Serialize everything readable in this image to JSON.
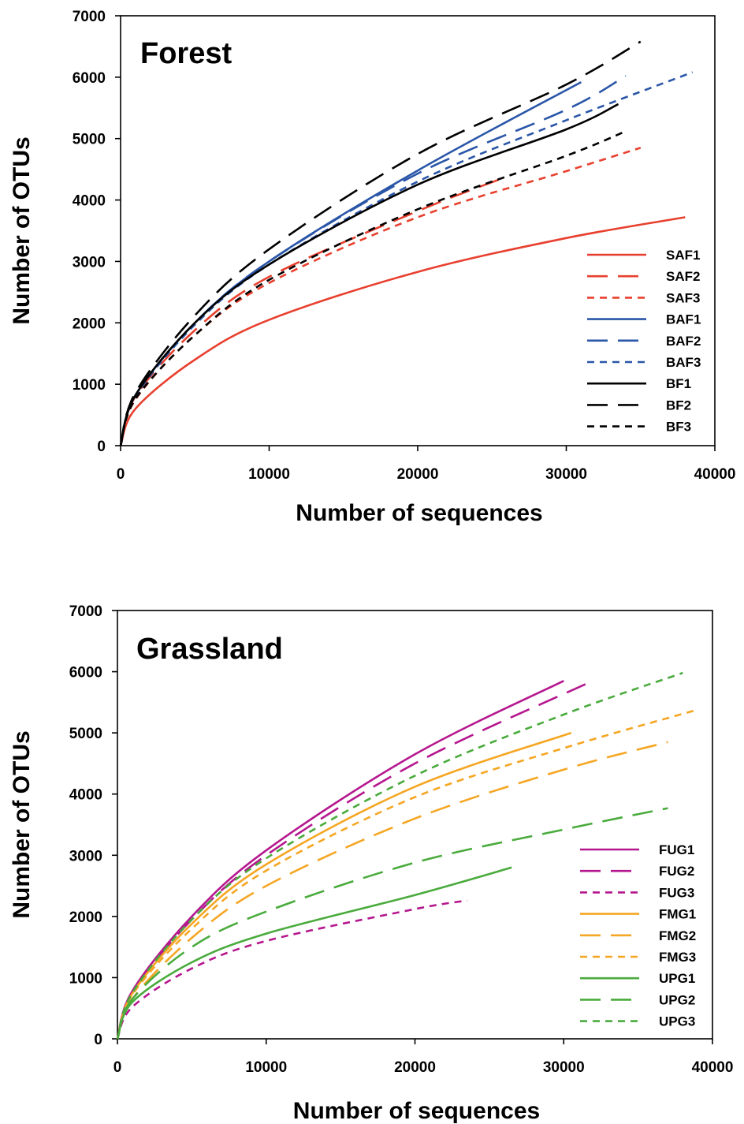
{
  "chart_data": [
    {
      "type": "line",
      "title": "Forest",
      "xlabel": "Number of sequences",
      "ylabel": "Number of OTUs",
      "xlim": [
        0,
        40000
      ],
      "ylim": [
        0,
        7000
      ],
      "xticks": [
        "0",
        "10000",
        "20000",
        "30000",
        "40000"
      ],
      "yticks": [
        "0",
        "1000",
        "2000",
        "3000",
        "4000",
        "5000",
        "6000",
        "7000"
      ],
      "grid": false,
      "legend_position": "bottom-right",
      "series": [
        {
          "name": "SAF1",
          "color": "#e8402f",
          "dash": "solid",
          "x": [
            0,
            1000,
            5000,
            10000,
            20000,
            30000,
            38000
          ],
          "y": [
            0,
            600,
            1400,
            2050,
            2830,
            3380,
            3720
          ]
        },
        {
          "name": "SAF2",
          "color": "#e8402f",
          "dash": "long-dash",
          "x": [
            0,
            1000,
            5000,
            10000,
            20000,
            26000
          ],
          "y": [
            0,
            800,
            1880,
            2750,
            3820,
            4380
          ]
        },
        {
          "name": "SAF3",
          "color": "#e8402f",
          "dash": "short-dash",
          "x": [
            0,
            1000,
            5000,
            10000,
            20000,
            30000,
            35000
          ],
          "y": [
            0,
            750,
            1800,
            2650,
            3720,
            4470,
            4850
          ]
        },
        {
          "name": "BAF1",
          "color": "#2a56a8",
          "dash": "solid",
          "x": [
            0,
            1000,
            5000,
            10000,
            20000,
            31000
          ],
          "y": [
            0,
            820,
            2000,
            3000,
            4480,
            5920
          ]
        },
        {
          "name": "BAF2",
          "color": "#2a56a8",
          "dash": "long-dash",
          "x": [
            0,
            1000,
            5000,
            10000,
            20000,
            30000,
            34000
          ],
          "y": [
            0,
            820,
            2000,
            3000,
            4430,
            5470,
            6020
          ]
        },
        {
          "name": "BAF3",
          "color": "#2a56a8",
          "dash": "short-dash",
          "x": [
            0,
            1000,
            5000,
            10000,
            20000,
            30000,
            38500
          ],
          "y": [
            0,
            800,
            1970,
            2950,
            4300,
            5300,
            6080
          ]
        },
        {
          "name": "BF1",
          "color": "#000000",
          "dash": "solid",
          "x": [
            0,
            1000,
            5000,
            10000,
            20000,
            30000,
            33500
          ],
          "y": [
            0,
            820,
            2000,
            2950,
            4250,
            5150,
            5560
          ]
        },
        {
          "name": "BF2",
          "color": "#000000",
          "dash": "long-dash",
          "x": [
            0,
            1000,
            5000,
            10000,
            20000,
            30000,
            35000
          ],
          "y": [
            0,
            860,
            2120,
            3200,
            4750,
            5880,
            6580
          ]
        },
        {
          "name": "BF3",
          "color": "#000000",
          "dash": "short-dash",
          "x": [
            0,
            1000,
            5000,
            10000,
            20000,
            30000,
            34000
          ],
          "y": [
            0,
            760,
            1800,
            2700,
            3850,
            4720,
            5120
          ]
        }
      ]
    },
    {
      "type": "line",
      "title": "Grassland",
      "xlabel": "Number of sequences",
      "ylabel": "Number of OTUs",
      "xlim": [
        0,
        40000
      ],
      "ylim": [
        0,
        7000
      ],
      "xticks": [
        "0",
        "10000",
        "20000",
        "30000",
        "40000"
      ],
      "yticks": [
        "0",
        "1000",
        "2000",
        "3000",
        "4000",
        "5000",
        "6000",
        "7000"
      ],
      "grid": false,
      "legend_position": "bottom-right",
      "series": [
        {
          "name": "FUG1",
          "color": "#b5178e",
          "dash": "solid",
          "x": [
            0,
            1000,
            5000,
            10000,
            20000,
            30000
          ],
          "y": [
            0,
            780,
            2000,
            3080,
            4650,
            5850
          ]
        },
        {
          "name": "FUG2",
          "color": "#b5178e",
          "dash": "long-dash",
          "x": [
            0,
            1000,
            5000,
            10000,
            20000,
            31500
          ],
          "y": [
            0,
            760,
            1950,
            3000,
            4500,
            5800
          ]
        },
        {
          "name": "FUG3",
          "color": "#b5178e",
          "dash": "short-dash",
          "x": [
            0,
            1000,
            5000,
            10000,
            20000,
            23500
          ],
          "y": [
            0,
            520,
            1150,
            1600,
            2120,
            2260
          ]
        },
        {
          "name": "FMG1",
          "color": "#f5a623",
          "dash": "solid",
          "x": [
            0,
            1000,
            5000,
            10000,
            20000,
            30500
          ],
          "y": [
            0,
            740,
            1880,
            2850,
            4120,
            5000
          ]
        },
        {
          "name": "FMG2",
          "color": "#f5a623",
          "dash": "long-dash",
          "x": [
            0,
            1000,
            5000,
            10000,
            20000,
            30000,
            37000
          ],
          "y": [
            0,
            650,
            1650,
            2500,
            3600,
            4400,
            4850
          ]
        },
        {
          "name": "FMG3",
          "color": "#f5a623",
          "dash": "short-dash",
          "x": [
            0,
            1000,
            5000,
            10000,
            20000,
            30000,
            39000
          ],
          "y": [
            0,
            720,
            1800,
            2750,
            3950,
            4750,
            5380
          ]
        },
        {
          "name": "UPG1",
          "color": "#4aab3d",
          "dash": "solid",
          "x": [
            0,
            1000,
            5000,
            10000,
            20000,
            26500
          ],
          "y": [
            0,
            600,
            1250,
            1720,
            2350,
            2800
          ]
        },
        {
          "name": "UPG2",
          "color": "#4aab3d",
          "dash": "long-dash",
          "x": [
            0,
            1000,
            5000,
            10000,
            20000,
            30000,
            37000
          ],
          "y": [
            0,
            650,
            1500,
            2080,
            2880,
            3420,
            3770
          ]
        },
        {
          "name": "UPG3",
          "color": "#4aab3d",
          "dash": "short-dash",
          "x": [
            0,
            1000,
            5000,
            10000,
            20000,
            30000,
            38000
          ],
          "y": [
            0,
            750,
            1950,
            2950,
            4300,
            5300,
            5980
          ]
        }
      ]
    }
  ]
}
